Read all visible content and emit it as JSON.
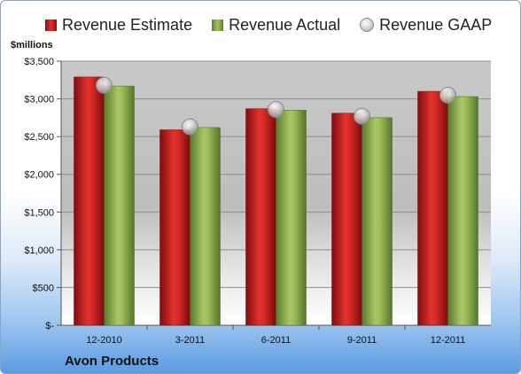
{
  "legend": {
    "estimate": "Revenue Estimate",
    "actual": "Revenue Actual",
    "gaap": "Revenue GAAP"
  },
  "units_label": "$millions",
  "company": "Avon Products",
  "colors": {
    "estimate": "#cc1b1f",
    "actual": "#8cae4f",
    "gaap_marker": "#c8c8c8"
  },
  "chart_data": {
    "type": "bar",
    "categories": [
      "12-2010",
      "3-2011",
      "6-2011",
      "9-2011",
      "12-2011"
    ],
    "series": [
      {
        "name": "Revenue Estimate",
        "values": [
          3290,
          2590,
          2870,
          2810,
          3100
        ]
      },
      {
        "name": "Revenue Actual",
        "values": [
          3170,
          2620,
          2850,
          2750,
          3030
        ]
      },
      {
        "name": "Revenue GAAP",
        "marker": "circle",
        "values": [
          3180,
          2630,
          2860,
          2770,
          3050
        ]
      }
    ],
    "yticks": [
      "$-",
      "$500",
      "$1,000",
      "$1,500",
      "$2,000",
      "$2,500",
      "$3,000",
      "$3,500"
    ],
    "ylim": [
      0,
      3500
    ],
    "ylabel": "$millions",
    "grid": true,
    "legend_position": "top"
  }
}
